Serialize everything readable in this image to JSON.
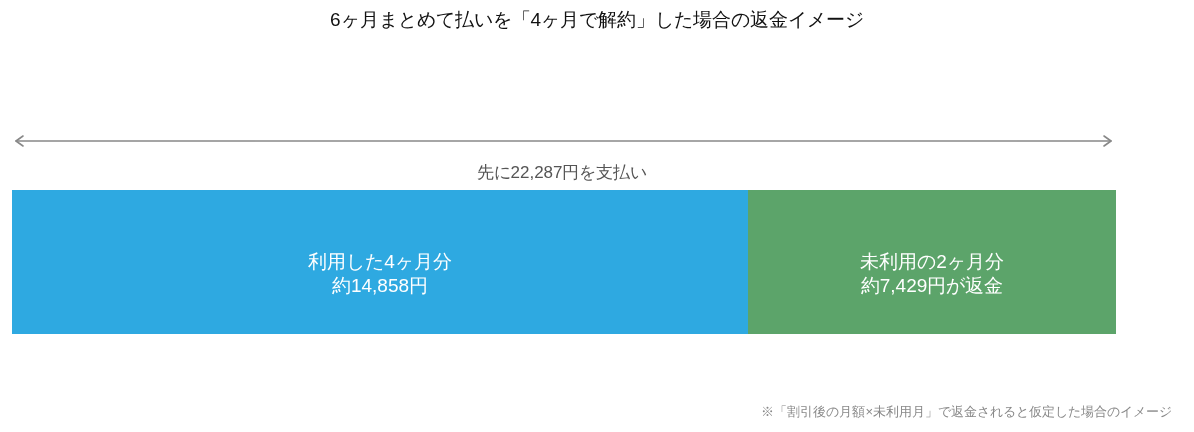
{
  "chart_data": {
    "type": "bar",
    "orientation": "horizontal",
    "stacked": true,
    "title": "6ヶ月まとめて払いを「4ヶ月で解約」した場合の返金イメージ",
    "categories": [
      null
    ],
    "series": [
      {
        "name": "利用した4ヶ月分",
        "color": "#2ea9e1",
        "values": [
          14858
        ],
        "value_labels": [
          "約14,858円"
        ]
      },
      {
        "name": "未利用の2ヶ月分",
        "color": "#5ca46a",
        "values": [
          7429
        ],
        "value_labels": [
          "約7,429円が返金"
        ]
      }
    ],
    "xlim": [
      0,
      22287
    ],
    "tick_labels": false,
    "annotations": [
      "先に22,287円を支払い",
      "※「割引後の月額×未利用月」で返金されると仮定した場合のイメージ"
    ]
  }
}
